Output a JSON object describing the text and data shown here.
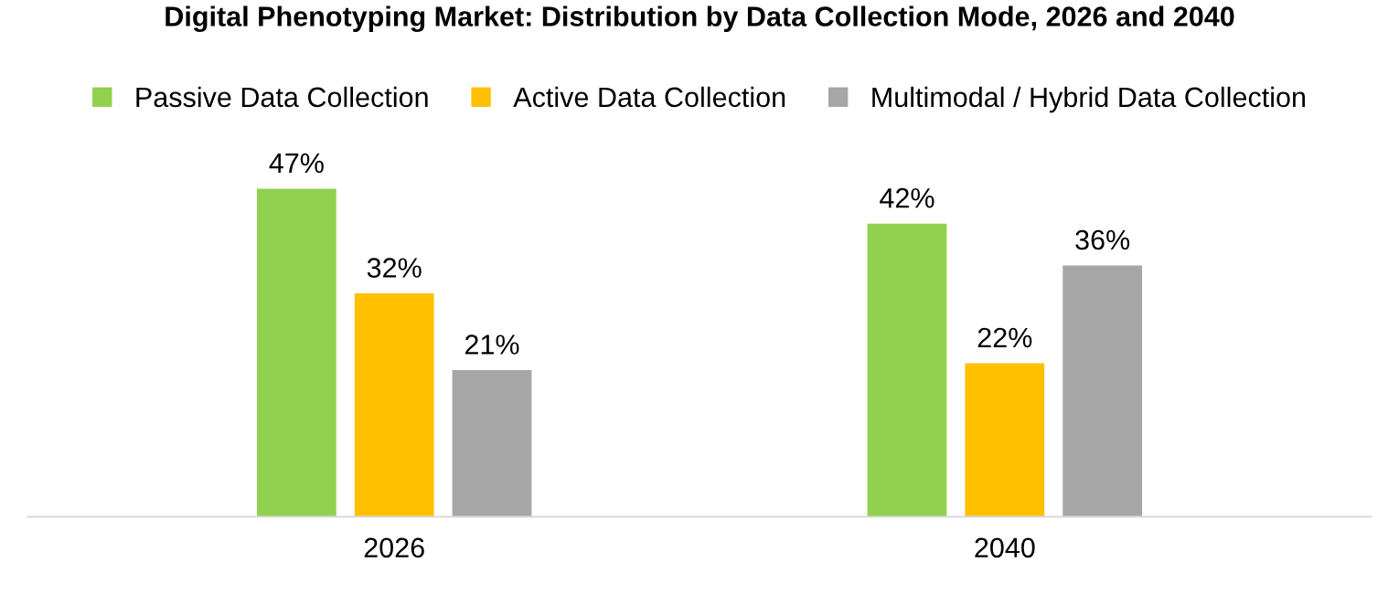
{
  "chart_data": {
    "type": "bar",
    "title": "Digital Phenotyping Market: Distribution by Data Collection Mode, 2026 and 2040",
    "categories": [
      "2026",
      "2040"
    ],
    "series": [
      {
        "name": "Passive Data Collection",
        "color": "#92d050",
        "values": [
          47,
          42
        ],
        "value_labels": [
          "47%",
          "42%"
        ]
      },
      {
        "name": "Active Data Collection",
        "color": "#ffc000",
        "values": [
          32,
          22
        ],
        "value_labels": [
          "32%",
          "22%"
        ]
      },
      {
        "name": "Multimodal / Hybrid Data Collection",
        "color": "#a6a6a6",
        "values": [
          21,
          36
        ],
        "value_labels": [
          "21%",
          "36%"
        ]
      }
    ],
    "legend": "top",
    "tick_labels": "x"
  }
}
